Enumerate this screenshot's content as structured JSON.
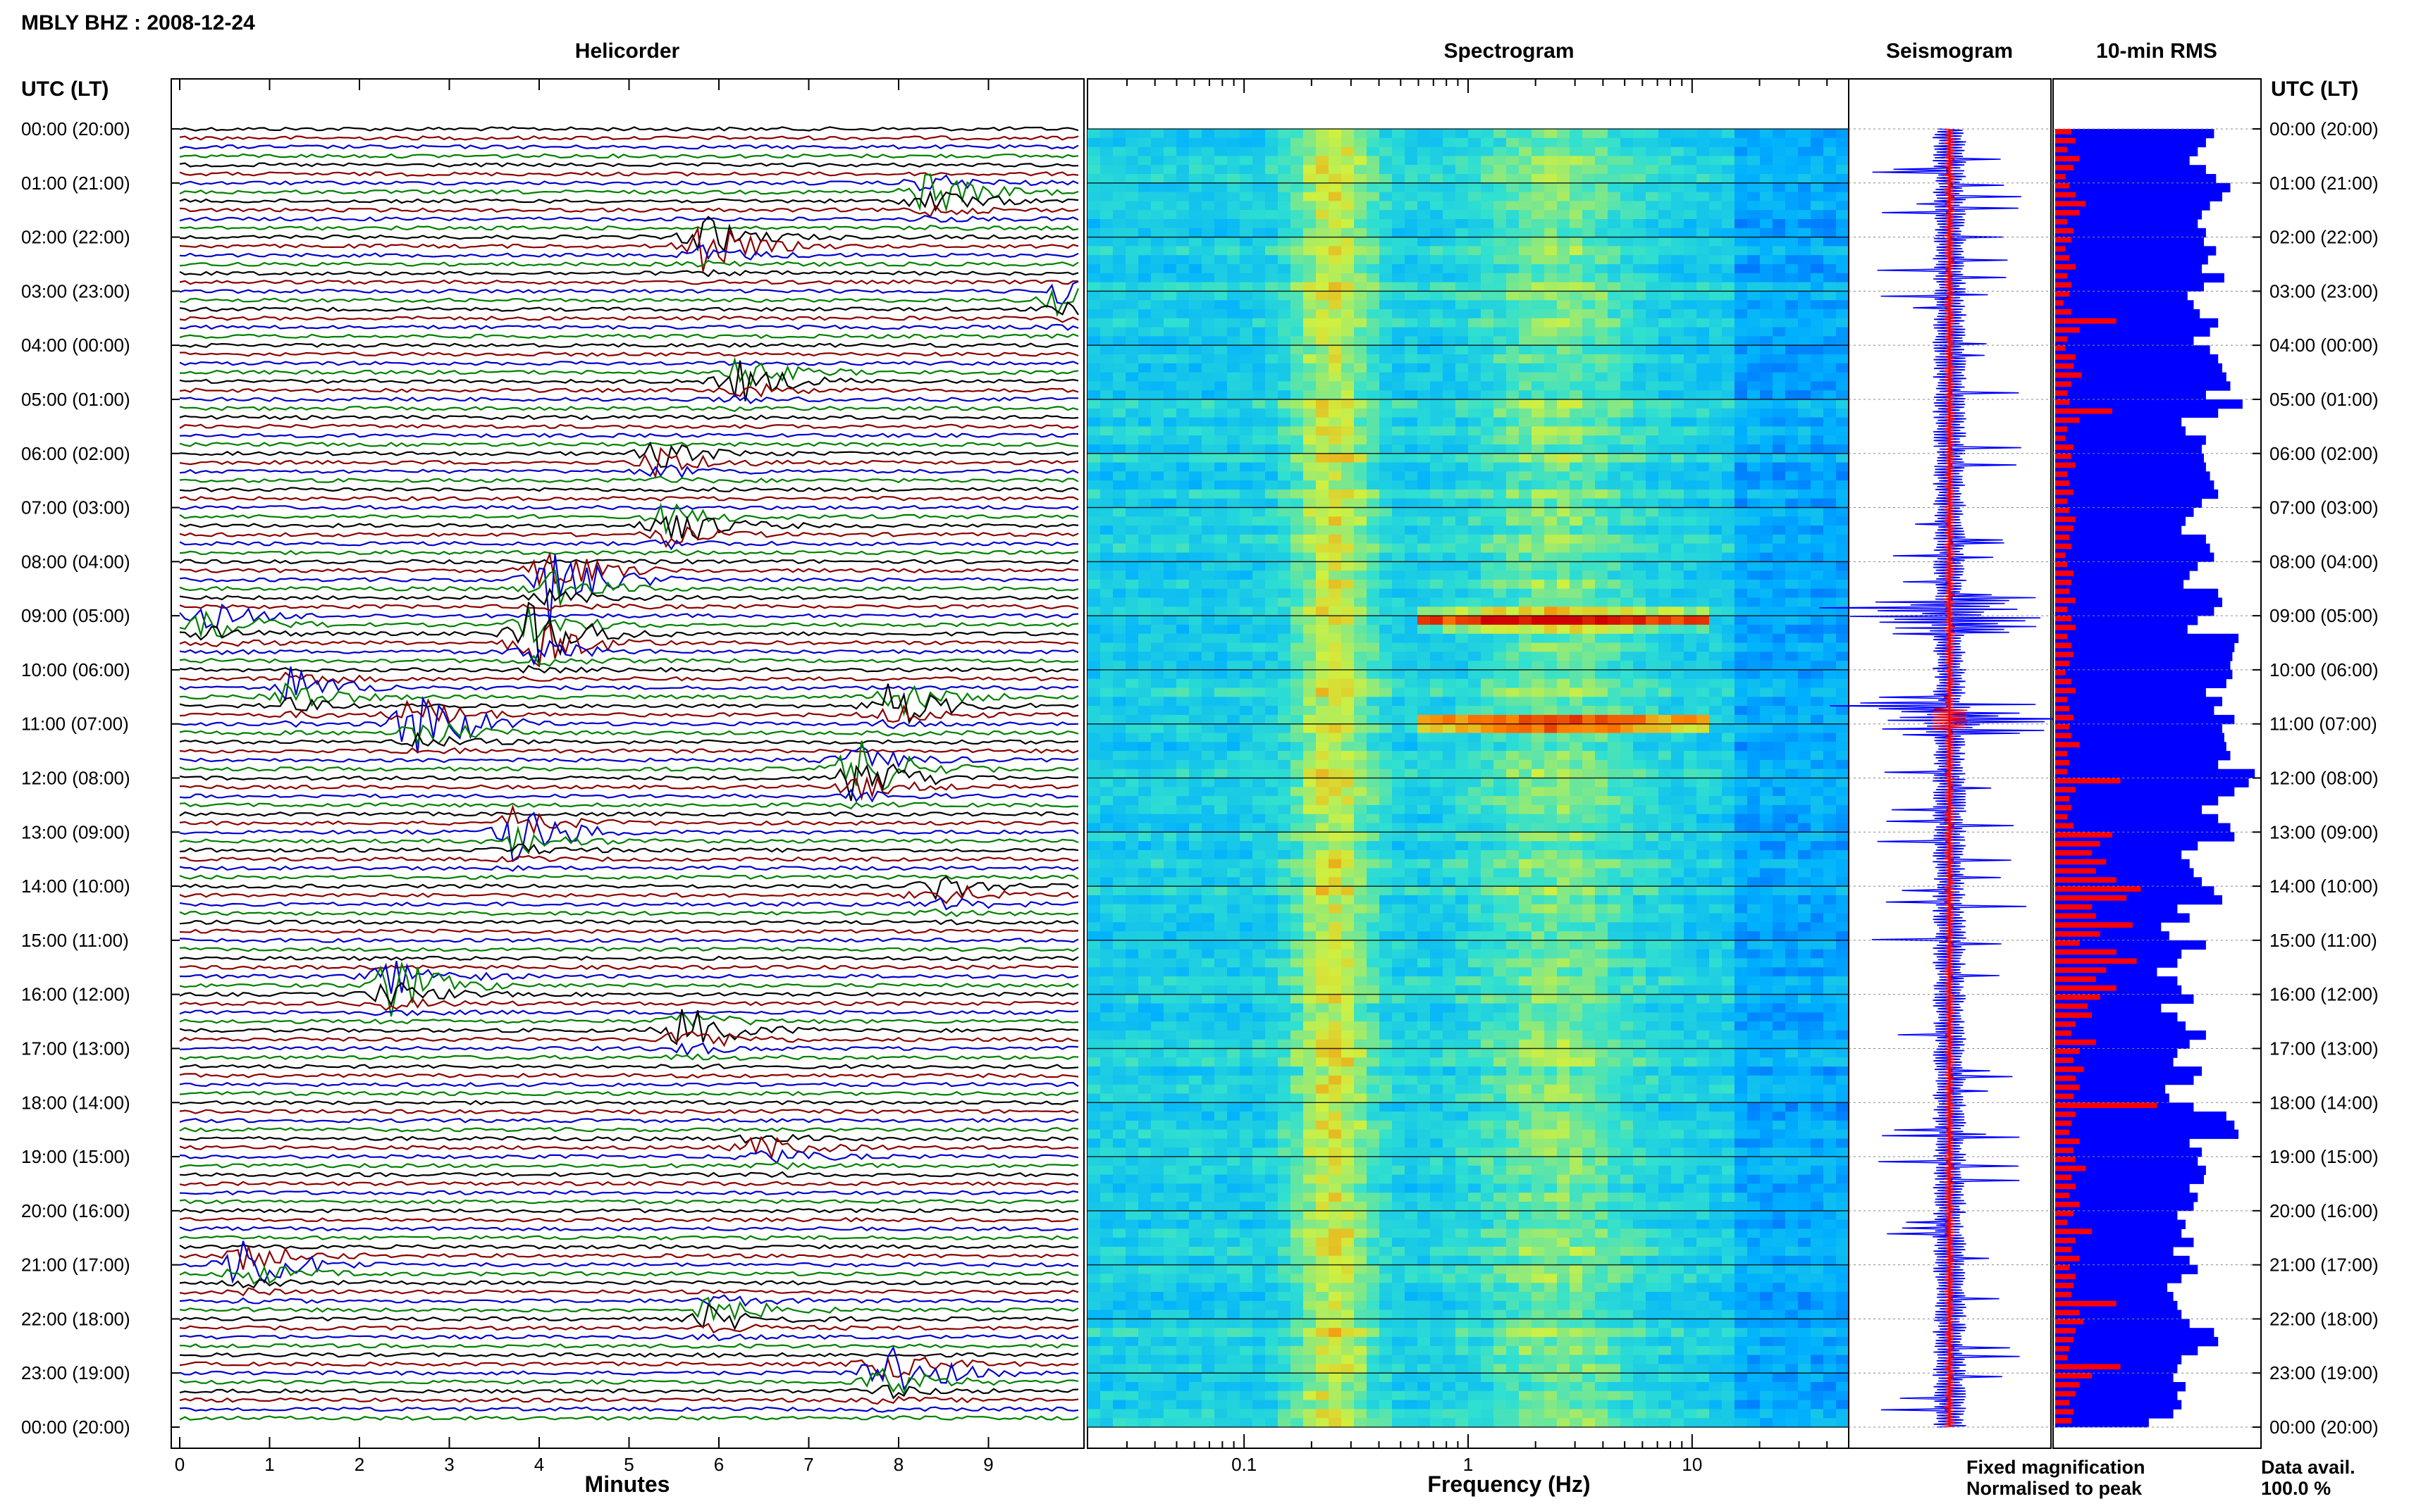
{
  "title": "MBLY BHZ : 2008-12-24",
  "panels": {
    "helicorder": "Helicorder",
    "spectrogram": "Spectrogram",
    "seismogram": "Seismogram",
    "rms": "10-min RMS"
  },
  "time_axis_label": "UTC (LT)",
  "time_ticks": [
    "00:00 (20:00)",
    "01:00 (21:00)",
    "02:00 (22:00)",
    "03:00 (23:00)",
    "04:00 (00:00)",
    "05:00 (01:00)",
    "06:00 (02:00)",
    "07:00 (03:00)",
    "08:00 (04:00)",
    "09:00 (05:00)",
    "10:00 (06:00)",
    "11:00 (07:00)",
    "12:00 (08:00)",
    "13:00 (09:00)",
    "14:00 (10:00)",
    "15:00 (11:00)",
    "16:00 (12:00)",
    "17:00 (13:00)",
    "18:00 (14:00)",
    "19:00 (15:00)",
    "20:00 (16:00)",
    "21:00 (17:00)",
    "22:00 (18:00)",
    "23:00 (19:00)",
    "00:00 (20:00)"
  ],
  "legend": {
    "fixed": "Fixed magnification",
    "normalised": "Normalised to peak",
    "fixed_color": "#0000ff",
    "normalised_color": "#ff0000"
  },
  "data_avail": {
    "label": "Data avail.",
    "value": "100.0 %"
  },
  "colors": {
    "trace_black": "#000000",
    "trace_red": "#8b0000",
    "trace_blue": "#0000cc",
    "trace_green": "#008000",
    "bar_blue": "#0000ff",
    "bar_red": "#ff0000"
  },
  "chart_data": [
    {
      "type": "line",
      "panel": "helicorder",
      "xlabel": "Minutes",
      "x_ticks": [
        "0",
        "1",
        "2",
        "3",
        "4",
        "5",
        "6",
        "7",
        "8",
        "9"
      ],
      "xlim": [
        0,
        10
      ],
      "ylim_hours": [
        0,
        24
      ],
      "rows": 144,
      "row_minutes": 10,
      "trace_color_cycle": [
        "black",
        "red",
        "blue",
        "green"
      ],
      "events": [
        {
          "hour": 1.2,
          "minute": 8.3,
          "amp": 5
        },
        {
          "hour": 2.1,
          "minute": 5.8,
          "amp": 6
        },
        {
          "hour": 3.1,
          "minute": 9.8,
          "amp": 4
        },
        {
          "hour": 4.6,
          "minute": 6.2,
          "amp": 5
        },
        {
          "hour": 6.1,
          "minute": 5.3,
          "amp": 4
        },
        {
          "hour": 7.3,
          "minute": 5.4,
          "amp": 5
        },
        {
          "hour": 8.3,
          "minute": 4.1,
          "amp": 9
        },
        {
          "hour": 9.1,
          "minute": 0.3,
          "amp": 4
        },
        {
          "hour": 9.4,
          "minute": 3.9,
          "amp": 10
        },
        {
          "hour": 10.4,
          "minute": 1.2,
          "amp": 5
        },
        {
          "hour": 10.6,
          "minute": 7.9,
          "amp": 6
        },
        {
          "hour": 11.0,
          "minute": 2.6,
          "amp": 8
        },
        {
          "hour": 11.9,
          "minute": 7.5,
          "amp": 9
        },
        {
          "hour": 13.0,
          "minute": 3.7,
          "amp": 6
        },
        {
          "hour": 14.1,
          "minute": 8.4,
          "amp": 4
        },
        {
          "hour": 15.8,
          "minute": 2.3,
          "amp": 7
        },
        {
          "hour": 16.7,
          "minute": 5.6,
          "amp": 5
        },
        {
          "hour": 18.9,
          "minute": 6.4,
          "amp": 3
        },
        {
          "hour": 21.0,
          "minute": 0.7,
          "amp": 6
        },
        {
          "hour": 21.9,
          "minute": 5.9,
          "amp": 4
        },
        {
          "hour": 23.0,
          "minute": 7.8,
          "amp": 7
        }
      ]
    },
    {
      "type": "heatmap",
      "panel": "spectrogram",
      "xlabel": "Frequency (Hz)",
      "x_scale": "log",
      "xlim": [
        0.02,
        50
      ],
      "x_tick_labels": [
        "0.1",
        "1",
        "10"
      ],
      "ylim_hours": [
        0,
        24
      ],
      "colormap": [
        "#0055ff",
        "#00b0ff",
        "#30e0d0",
        "#d0f040",
        "#ff8000",
        "#d00000"
      ],
      "spectral_peaks_hz": [
        0.25,
        2.5
      ],
      "strong_rows_hours": [
        9.0,
        10.9
      ]
    },
    {
      "type": "line",
      "panel": "seismogram",
      "series": [
        {
          "name": "Fixed magnification",
          "color": "#0000ff"
        },
        {
          "name": "Normalised to peak",
          "color": "#ff0000"
        }
      ],
      "ylim_hours": [
        0,
        24
      ]
    },
    {
      "type": "bar",
      "panel": "10-min RMS",
      "orientation": "horizontal",
      "bins": 144,
      "xlim": [
        0,
        1
      ],
      "series": [
        {
          "name": "Fixed magnification",
          "color": "#0000ff",
          "values": [
            0.78,
            0.74,
            0.7,
            0.66,
            0.74,
            0.79,
            0.86,
            0.82,
            0.76,
            0.72,
            0.7,
            0.74,
            0.73,
            0.79,
            0.75,
            0.72,
            0.83,
            0.73,
            0.65,
            0.68,
            0.71,
            0.8,
            0.76,
            0.68,
            0.76,
            0.8,
            0.82,
            0.84,
            0.86,
            0.74,
            0.92,
            0.8,
            0.62,
            0.64,
            0.74,
            0.72,
            0.73,
            0.74,
            0.76,
            0.78,
            0.8,
            0.72,
            0.68,
            0.64,
            0.62,
            0.74,
            0.76,
            0.78,
            0.7,
            0.66,
            0.63,
            0.8,
            0.82,
            0.78,
            0.7,
            0.65,
            0.9,
            0.88,
            0.87,
            0.86,
            0.87,
            0.84,
            0.74,
            0.82,
            0.78,
            0.88,
            0.82,
            0.83,
            0.84,
            0.86,
            0.8,
            0.98,
            0.95,
            0.88,
            0.8,
            0.72,
            0.8,
            0.86,
            0.88,
            0.7,
            0.62,
            0.66,
            0.68,
            0.72,
            0.78,
            0.82,
            0.6,
            0.66,
            0.52,
            0.56,
            0.74,
            0.62,
            0.6,
            0.5,
            0.6,
            0.62,
            0.68,
            0.52,
            0.6,
            0.64,
            0.74,
            0.66,
            0.6,
            0.58,
            0.72,
            0.68,
            0.54,
            0.56,
            0.68,
            0.84,
            0.88,
            0.9,
            0.66,
            0.72,
            0.7,
            0.74,
            0.73,
            0.66,
            0.7,
            0.68,
            0.6,
            0.64,
            0.62,
            0.68,
            0.58,
            0.66,
            0.7,
            0.62,
            0.55,
            0.58,
            0.6,
            0.62,
            0.66,
            0.78,
            0.8,
            0.7,
            0.62,
            0.6,
            0.58,
            0.64,
            0.6,
            0.62,
            0.58,
            0.46
          ]
        },
        {
          "name": "Normalised to peak",
          "color": "#ff0000",
          "values": [
            0.08,
            0.1,
            0.06,
            0.12,
            0.09,
            0.05,
            0.07,
            0.1,
            0.15,
            0.12,
            0.06,
            0.09,
            0.08,
            0.05,
            0.07,
            0.1,
            0.06,
            0.08,
            0.07,
            0.04,
            0.08,
            0.3,
            0.12,
            0.06,
            0.05,
            0.1,
            0.09,
            0.13,
            0.08,
            0.06,
            0.07,
            0.28,
            0.12,
            0.06,
            0.05,
            0.09,
            0.08,
            0.1,
            0.06,
            0.07,
            0.09,
            0.06,
            0.07,
            0.1,
            0.09,
            0.07,
            0.08,
            0.05,
            0.06,
            0.09,
            0.08,
            0.07,
            0.1,
            0.06,
            0.08,
            0.1,
            0.06,
            0.08,
            0.09,
            0.07,
            0.05,
            0.08,
            0.1,
            0.06,
            0.07,
            0.09,
            0.07,
            0.08,
            0.12,
            0.06,
            0.07,
            0.06,
            0.32,
            0.1,
            0.07,
            0.08,
            0.06,
            0.09,
            0.28,
            0.22,
            0.18,
            0.25,
            0.2,
            0.3,
            0.42,
            0.35,
            0.18,
            0.2,
            0.38,
            0.22,
            0.12,
            0.3,
            0.4,
            0.25,
            0.2,
            0.3,
            0.22,
            0.16,
            0.18,
            0.1,
            0.08,
            0.2,
            0.12,
            0.09,
            0.14,
            0.1,
            0.12,
            0.09,
            0.5,
            0.1,
            0.08,
            0.07,
            0.12,
            0.09,
            0.1,
            0.15,
            0.08,
            0.1,
            0.07,
            0.12,
            0.09,
            0.06,
            0.18,
            0.1,
            0.08,
            0.12,
            0.07,
            0.1,
            0.09,
            0.08,
            0.3,
            0.12,
            0.14,
            0.1,
            0.09,
            0.07,
            0.06,
            0.32,
            0.18,
            0.12,
            0.1,
            0.07,
            0.09,
            0.08
          ]
        }
      ]
    }
  ]
}
